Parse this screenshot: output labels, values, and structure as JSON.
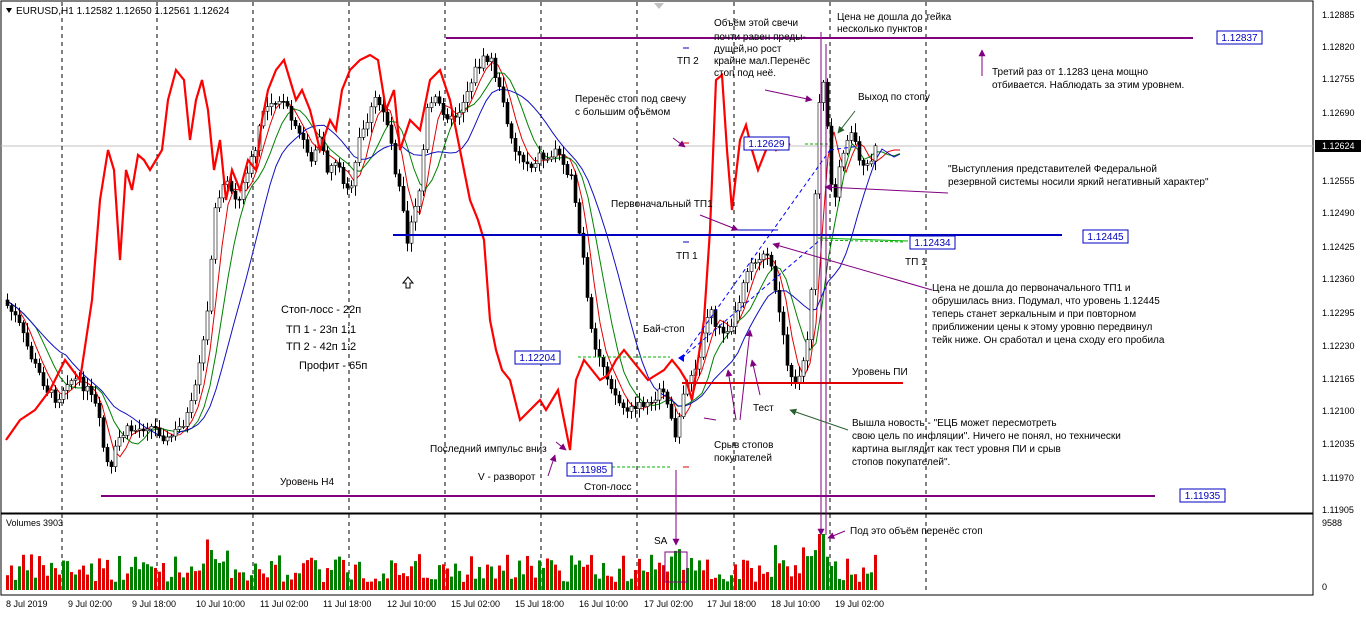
{
  "header": {
    "symbol_label": "EURUSD,H1  1.12582 1.12650 1.12561 1.12624",
    "volume_label": "Volumes 3903"
  },
  "colors": {
    "bull": "#008000",
    "bear": "#e00000",
    "custom_line": "#ff0000",
    "ma_fast": "#e00000",
    "ma_mid": "#008000",
    "ma_slow": "#1010c0",
    "level_purple": "#800080",
    "level_blue": "#0000c0",
    "level_red": "#e00000",
    "arrow_green": "#00b000"
  },
  "price_axis": {
    "ticks": [
      "1.12885",
      "1.12820",
      "1.12755",
      "1.12690",
      "1.12625",
      "1.12555",
      "1.12490",
      "1.12425",
      "1.12360",
      "1.12295",
      "1.12230",
      "1.12165",
      "1.12100",
      "1.12035",
      "1.11970",
      "1.11905"
    ],
    "current_price": "1.12624"
  },
  "volume_axis": {
    "max": "9588",
    "min": "0"
  },
  "time_axis": {
    "labels": [
      "8 Jul 2019",
      "9 Jul 02:00",
      "9 Jul 18:00",
      "10 Jul 10:00",
      "11 Jul 02:00",
      "11 Jul 18:00",
      "12 Jul 10:00",
      "15 Jul 02:00",
      "15 Jul 18:00",
      "16 Jul 10:00",
      "17 Jul 02:00",
      "17 Jul 18:00",
      "18 Jul 10:00",
      "19 Jul 02:00"
    ]
  },
  "levels": {
    "l1": "1.12837",
    "l2": "1.12445",
    "l3": "1.12434",
    "l4": "1.12629",
    "l5": "1.12204",
    "l6": "1.11985",
    "l7": "1.11935"
  },
  "annotations": {
    "a1": "Цена не дошла до тейка",
    "a2": "несколько пунктов",
    "a3": "Объём этой свечи",
    "a4": "почти равен преды-",
    "a5": "дущей,но рост",
    "a6": "крайне мал.Перенёс",
    "a7": "стоп под неё.",
    "a8": "Третий раз от 1.1283 цена мощно",
    "a9": "отбивается. Наблюдать за этим уровнем.",
    "a10": "ТП 2",
    "a11": "Перенёс стоп под свечу",
    "a12": "с большим объёмом",
    "a13": "Выход по стопу",
    "a14": "\"Выступления представителей Федеральной",
    "a15": "резервной системы носили яркий негативный характер\"",
    "a16": "Первоначальный ТП1",
    "a17": "ТП 1",
    "a18": "ТП 1",
    "a19": "Цена не дошла до первоначального ТП1 и",
    "a20": "обрушилась вниз. Подумал, что уровень 1.12445",
    "a21": "теперь станет зеркальным и при повторном",
    "a22": "приближении цены к этому уровню передвинул",
    "a23": "тейк ниже. Он сработал и цена сходу его пробила",
    "a24": "Стоп-лосс - 22п",
    "a25": "ТП 1 - 23п 1:1",
    "a26": "ТП 2 - 42п 1:2",
    "a27": "Профит - 65п",
    "a28": "Бай-стоп",
    "a29": "Уровень ПИ",
    "a30": "Тест",
    "a31": "Вышла новость - \"ЕЦБ может пересмотреть",
    "a32": "свою цель по инфляции\". Ничего не понял, но технически",
    "a33": "картина выглядит как тест уровня ПИ и срыв",
    "a34": "стопов покупателей\".",
    "a35": "Последний импульс вниз",
    "a36": "Срыв стопов",
    "a37": "покупателей",
    "a38": "V - разворот",
    "a39": "Стоп-лосс",
    "a40": "Уровень Н4",
    "a41": "SA",
    "a42": "Под это объём перенёс стоп"
  },
  "chart_data": {
    "type": "candlestick",
    "symbol": "EURUSD",
    "timeframe": "H1",
    "ohlc_last": {
      "open": 1.12582,
      "high": 1.1265,
      "low": 1.12561,
      "close": 1.12624
    },
    "price_range": [
      1.1187,
      1.1294
    ],
    "x_start": "8 Jul 2019",
    "candles_approx": 198,
    "horizontal_levels": [
      {
        "price": 1.12837,
        "color": "purple"
      },
      {
        "price": 1.12445,
        "color": "blue"
      },
      {
        "price": 1.12434,
        "color": "blue"
      },
      {
        "price": 1.12629,
        "color": "blue"
      },
      {
        "price": 1.12204,
        "color": "blue"
      },
      {
        "price": 1.11985,
        "color": "blue"
      },
      {
        "price": 1.11935,
        "color": "purple"
      },
      {
        "price": 1.1215,
        "color": "red"
      }
    ],
    "indicators": [
      "ma_fast",
      "ma_mid",
      "ma_slow",
      "custom_line"
    ],
    "volume_range": [
      0,
      9588
    ]
  }
}
